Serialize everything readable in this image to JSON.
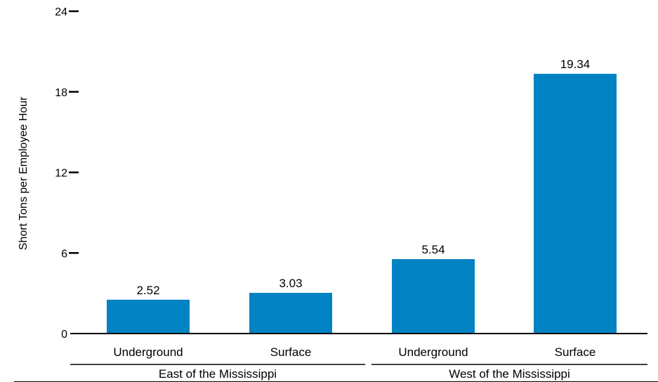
{
  "chart_data": {
    "type": "bar",
    "ylabel": "Short Tons per Employee Hour",
    "ylim": [
      0,
      24
    ],
    "yticks": [
      0,
      6,
      12,
      18,
      24
    ],
    "grid": false,
    "bar_color": "#0082c3",
    "groups": [
      {
        "name": "East of the Mississippi",
        "categories": [
          "Underground",
          "Surface"
        ]
      },
      {
        "name": "West of the Mississippi",
        "categories": [
          "Underground",
          "Surface"
        ]
      }
    ],
    "categories": [
      "Underground",
      "Surface",
      "Underground",
      "Surface"
    ],
    "values": [
      2.52,
      3.03,
      5.54,
      19.34
    ],
    "value_labels": [
      "2.52",
      "3.03",
      "5.54",
      "19.34"
    ]
  }
}
